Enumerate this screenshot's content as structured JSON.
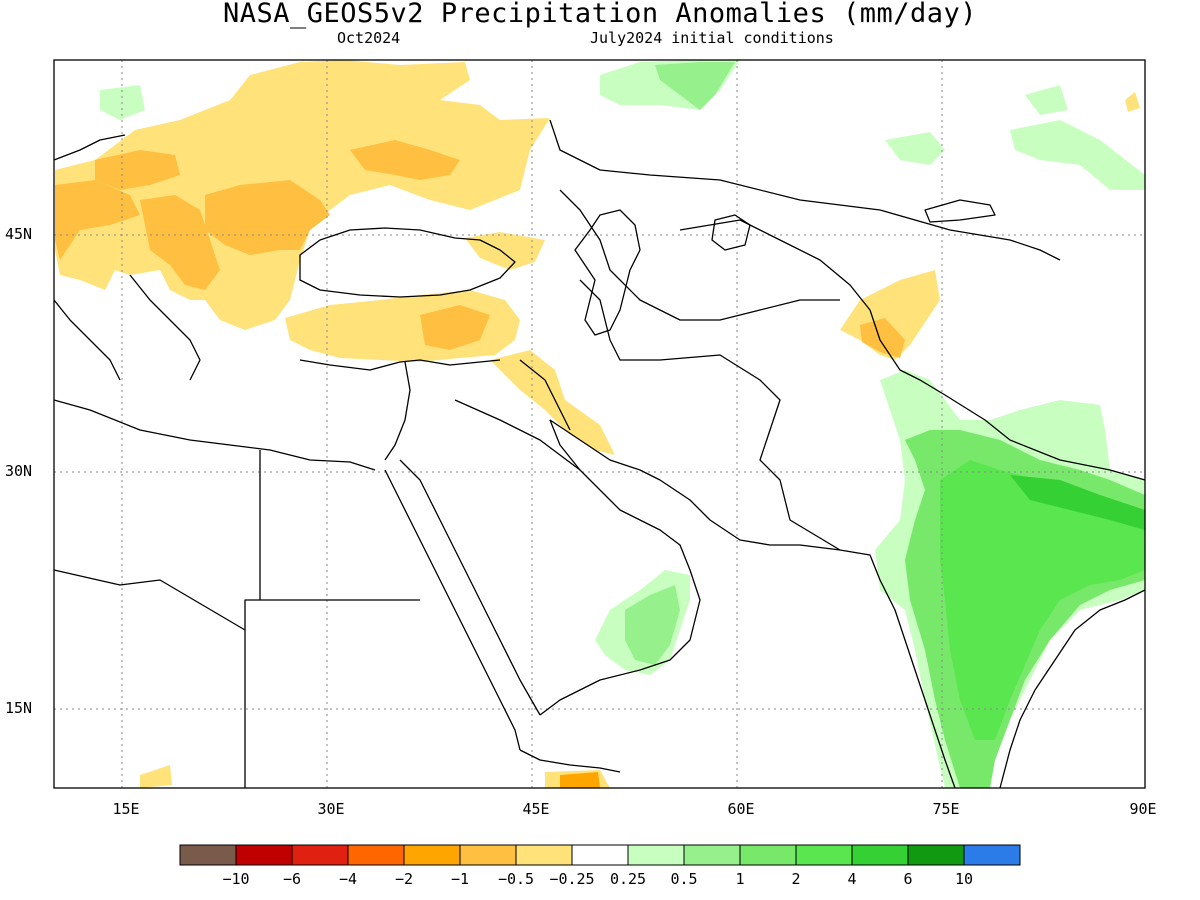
{
  "map": {
    "title": "NASA_GEOS5v2 Precipitation Anomalies (mm/day)",
    "subtitle_left": "Oct2024",
    "subtitle_right": "July2024 initial conditions",
    "lat_ticks": [
      "45N",
      "30N",
      "15N"
    ],
    "lon_ticks": [
      "15E",
      "30E",
      "45E",
      "60E",
      "75E",
      "90E"
    ],
    "lon_range": [
      10,
      90
    ],
    "lat_range": [
      10,
      55
    ],
    "grid": "dotted"
  },
  "colorbar": {
    "colors": [
      "#7a5a4b",
      "#c00000",
      "#e02010",
      "#ff6600",
      "#ffa500",
      "#ffbf40",
      "#ffe37a",
      "#ffffff",
      "#c8ffc0",
      "#96f08c",
      "#78e86a",
      "#5ae64e",
      "#34d034",
      "#119a11",
      "#2b7be8"
    ],
    "labels": [
      "−10",
      "−6",
      "−4",
      "−2",
      "−1",
      "−0.5",
      "−0.25",
      "0.25",
      "0.5",
      "1",
      "2",
      "4",
      "6",
      "10"
    ]
  }
}
